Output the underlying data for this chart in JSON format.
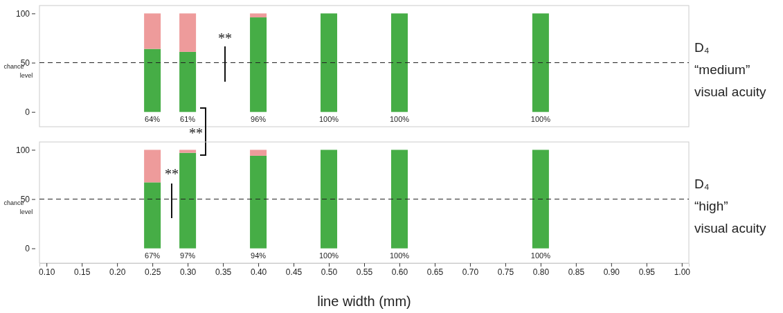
{
  "chart_data": [
    {
      "type": "bar",
      "stacked": true,
      "x": [
        0.25,
        0.3,
        0.4,
        0.5,
        0.6,
        0.8
      ],
      "series": [
        {
          "color": "#46ad46",
          "values": [
            64,
            61,
            96,
            100,
            100,
            100
          ],
          "value_labels": [
            "64%",
            "61%",
            "96%",
            "100%",
            "100%",
            "100%"
          ]
        },
        {
          "color": "#ee9b9b",
          "values": [
            36,
            39,
            4,
            0,
            0,
            0
          ]
        }
      ],
      "xlim": [
        0.09,
        1.01
      ],
      "ylim": [
        -15,
        108
      ],
      "yticks": [
        0,
        50,
        100
      ],
      "tick_labels": "y",
      "ref_lines": [
        {
          "axis": "y",
          "value": 50,
          "label": "chance level",
          "line_style": "dashed"
        }
      ],
      "annotations": [
        "D₄ “medium” visual acuity",
        "**",
        "**"
      ]
    },
    {
      "type": "bar",
      "stacked": true,
      "x": [
        0.25,
        0.3,
        0.4,
        0.5,
        0.6,
        0.8
      ],
      "series": [
        {
          "color": "#46ad46",
          "values": [
            67,
            97,
            94,
            100,
            100,
            100
          ],
          "value_labels": [
            "67%",
            "97%",
            "94%",
            "100%",
            "100%",
            "100%"
          ]
        },
        {
          "color": "#ee9b9b",
          "values": [
            33,
            3,
            6,
            0,
            0,
            0
          ]
        }
      ],
      "xlim": [
        0.09,
        1.01
      ],
      "ylim": [
        -15,
        108
      ],
      "yticks": [
        0,
        50,
        100
      ],
      "xticks": [
        {
          "value": 0.1,
          "label": "0.10"
        },
        {
          "value": 0.15,
          "label": "0.15"
        },
        {
          "value": 0.2,
          "label": "0.20"
        },
        {
          "value": 0.25,
          "label": "0.25"
        },
        {
          "value": 0.3,
          "label": "0.30"
        },
        {
          "value": 0.35,
          "label": "0.35"
        },
        {
          "value": 0.4,
          "label": "0.40"
        },
        {
          "value": 0.45,
          "label": "0.45"
        },
        {
          "value": 0.5,
          "label": "0.50"
        },
        {
          "value": 0.55,
          "label": "0.55"
        },
        {
          "value": 0.6,
          "label": "0.60"
        },
        {
          "value": 0.65,
          "label": "0.65"
        },
        {
          "value": 0.7,
          "label": "0.70"
        },
        {
          "value": 0.75,
          "label": "0.75"
        },
        {
          "value": 0.8,
          "label": "0.80"
        },
        {
          "value": 0.85,
          "label": "0.85"
        },
        {
          "value": 0.9,
          "label": "0.90"
        },
        {
          "value": 0.95,
          "label": "0.95"
        },
        {
          "value": 1.0,
          "label": "1.00"
        }
      ],
      "xlabel": "line width (mm)",
      "ref_lines": [
        {
          "axis": "y",
          "value": 50,
          "label": "chance level",
          "line_style": "dashed"
        }
      ],
      "annotations": [
        "D₄ “high” visual acuity",
        "**"
      ]
    }
  ]
}
